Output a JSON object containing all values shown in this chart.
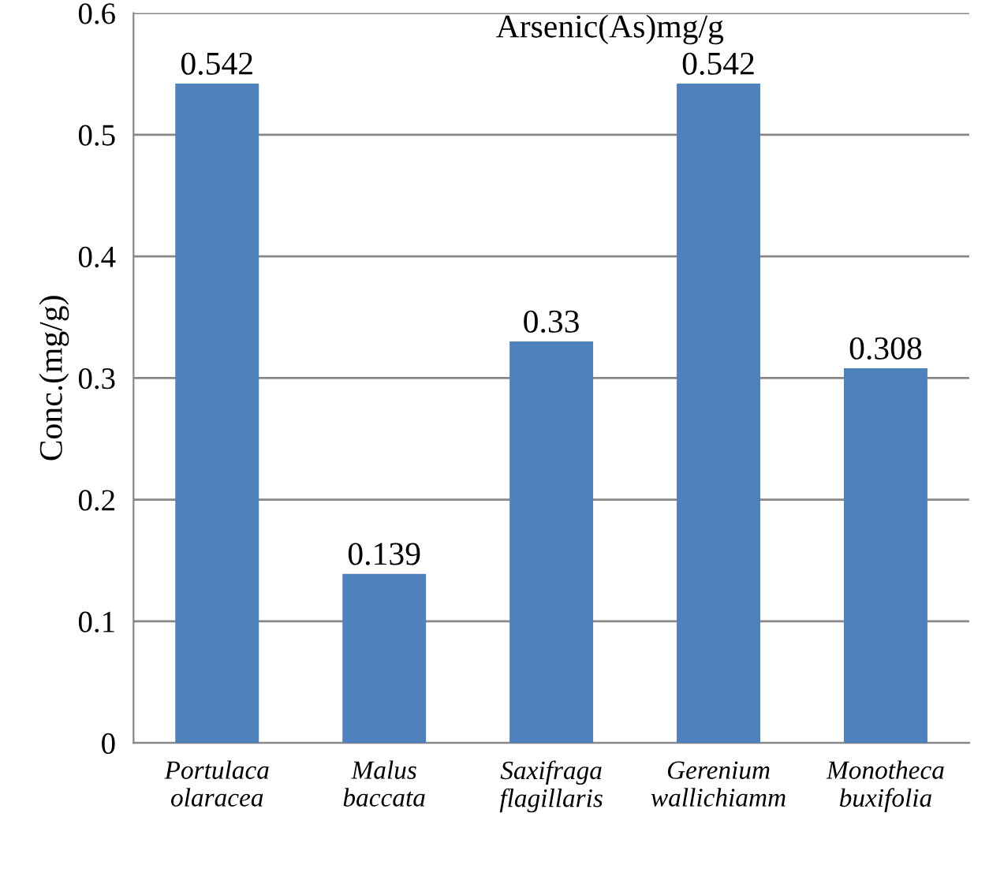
{
  "chart_data": {
    "type": "bar",
    "title": "Arsenic(As)mg/g",
    "ylabel": "Conc.(mg/g)",
    "categories": [
      "Portulaca\nolaracea",
      "Malus\nbaccata",
      "Saxifraga\nflagillaris",
      "Gerenium\nwallichiamm",
      "Monotheca\nbuxifolia"
    ],
    "values": [
      0.542,
      0.139,
      0.33,
      0.542,
      0.308
    ],
    "color": "#4f81bd",
    "ylim": [
      0,
      0.6
    ],
    "yticks": [
      0,
      0.1,
      0.2,
      0.3,
      0.4,
      0.5,
      0.6
    ],
    "grid": "y",
    "data_labels": true,
    "legend": false
  }
}
